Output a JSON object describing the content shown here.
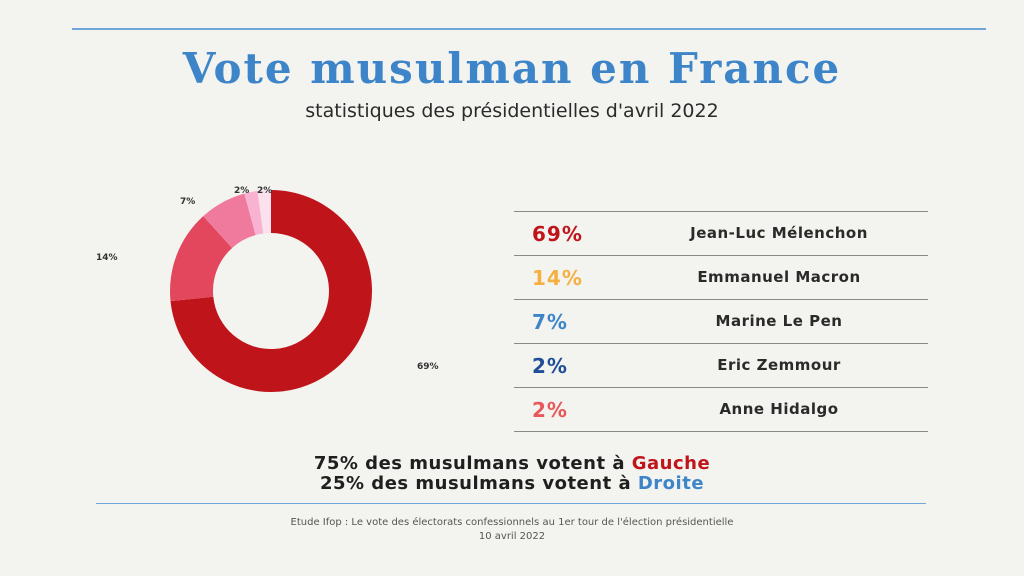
{
  "title": "Vote musulman en France",
  "subtitle": "statistiques des présidentielles d'avril 2022",
  "chart_data": {
    "type": "pie",
    "variant": "donut",
    "categories": [
      "Jean-Luc Mélenchon",
      "Emmanuel Macron",
      "Marine Le Pen",
      "Eric Zemmour",
      "Anne Hidalgo"
    ],
    "values": [
      69,
      14,
      7,
      2,
      2
    ],
    "labels": [
      "69%",
      "14%",
      "7%",
      "2%",
      "2%"
    ],
    "colors": [
      "#c0141b",
      "#e2475d",
      "#f07a9e",
      "#f8b3d0",
      "#fbe0ee"
    ]
  },
  "legend": [
    {
      "pct": "69%",
      "name": "Jean-Luc Mélenchon",
      "color": "#c0141b"
    },
    {
      "pct": "14%",
      "name": "Emmanuel Macron",
      "color": "#f5b041"
    },
    {
      "pct": "7%",
      "name": "Marine Le Pen",
      "color": "#3d85c8"
    },
    {
      "pct": "2%",
      "name": "Eric Zemmour",
      "color": "#1f4e96"
    },
    {
      "pct": "2%",
      "name": "Anne Hidalgo",
      "color": "#e8585a"
    }
  ],
  "conclusion": {
    "line1_prefix": "75% des musulmans votent à ",
    "line1_keyword": "Gauche",
    "line2_prefix": "25% des musulmans votent à ",
    "line2_keyword": "Droite"
  },
  "source": {
    "line1": "Etude Ifop : Le vote des électorats confessionnels au 1er tour de l'élection présidentielle",
    "line2": "10 avril 2022"
  }
}
